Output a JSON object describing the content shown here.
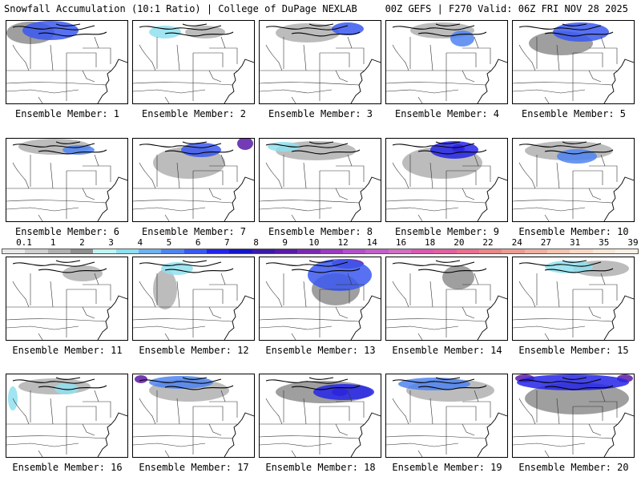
{
  "header": {
    "left": "Snowfall Accumulation (10:1 Ratio) | College of DuPage NEXLAB",
    "right": "00Z GEFS | F270 Valid: 06Z FRI NOV 28 2025"
  },
  "legend": {
    "ticks": [
      "0.1",
      "1",
      "2",
      "3",
      "4",
      "5",
      "6",
      "7",
      "8",
      "9",
      "10",
      "12",
      "14",
      "16",
      "18",
      "20",
      "22",
      "24",
      "27",
      "31",
      "35",
      "39"
    ],
    "colors": [
      "#e8e8e8",
      "#cfcfcf",
      "#b0b0b0",
      "#8e8e8e",
      "#bff3f3",
      "#8fe0ef",
      "#6fb0f0",
      "#4f84f0",
      "#3a58f0",
      "#2424e8",
      "#1616c8",
      "#3a1aa8",
      "#5a1aa8",
      "#7a2ab0",
      "#9a3ac0",
      "#b050c8",
      "#c060c8",
      "#d070c0",
      "#d85ab0",
      "#e060a0",
      "#e87090",
      "#e88888",
      "#ea9c90",
      "#eeb0a0",
      "#f2c4b0",
      "#f6d8c4",
      "#f8e6d6",
      "#faf0e6"
    ]
  },
  "panels": [
    {
      "label": "Ensemble Member: 1",
      "snow": [
        {
          "x": 55,
          "y": 12,
          "rx": 35,
          "ry": 12,
          "c": "#3a58f0"
        },
        {
          "x": 30,
          "y": 15,
          "rx": 30,
          "ry": 14,
          "c": "#8e8e8e"
        }
      ]
    },
    {
      "label": "Ensemble Member: 2",
      "snow": [
        {
          "x": 40,
          "y": 14,
          "rx": 20,
          "ry": 8,
          "c": "#8fe0ef"
        },
        {
          "x": 90,
          "y": 14,
          "rx": 25,
          "ry": 8,
          "c": "#b0b0b0"
        }
      ]
    },
    {
      "label": "Ensemble Member: 3",
      "snow": [
        {
          "x": 110,
          "y": 10,
          "rx": 20,
          "ry": 8,
          "c": "#3a58f0"
        },
        {
          "x": 60,
          "y": 15,
          "rx": 40,
          "ry": 12,
          "c": "#b0b0b0"
        }
      ]
    },
    {
      "label": "Ensemble Member: 4",
      "snow": [
        {
          "x": 95,
          "y": 22,
          "rx": 15,
          "ry": 10,
          "c": "#4f84f0"
        },
        {
          "x": 70,
          "y": 12,
          "rx": 40,
          "ry": 10,
          "c": "#b0b0b0"
        }
      ]
    },
    {
      "label": "Ensemble Member: 5",
      "snow": [
        {
          "x": 85,
          "y": 14,
          "rx": 35,
          "ry": 12,
          "c": "#3a58f0"
        },
        {
          "x": 60,
          "y": 28,
          "rx": 40,
          "ry": 15,
          "c": "#8e8e8e"
        }
      ]
    },
    {
      "label": "Ensemble Member: 6",
      "snow": [
        {
          "x": 90,
          "y": 14,
          "rx": 20,
          "ry": 6,
          "c": "#4f84f0"
        },
        {
          "x": 60,
          "y": 10,
          "rx": 45,
          "ry": 10,
          "c": "#b0b0b0"
        }
      ]
    },
    {
      "label": "Ensemble Member: 7",
      "snow": [
        {
          "x": 85,
          "y": 14,
          "rx": 25,
          "ry": 9,
          "c": "#3a58f0"
        },
        {
          "x": 140,
          "y": 6,
          "rx": 10,
          "ry": 8,
          "c": "#5a1aa8"
        },
        {
          "x": 70,
          "y": 30,
          "rx": 45,
          "ry": 20,
          "c": "#b0b0b0"
        }
      ]
    },
    {
      "label": "Ensemble Member: 8",
      "snow": [
        {
          "x": 30,
          "y": 10,
          "rx": 20,
          "ry": 6,
          "c": "#8fe0ef"
        },
        {
          "x": 70,
          "y": 15,
          "rx": 50,
          "ry": 12,
          "c": "#b0b0b0"
        }
      ]
    },
    {
      "label": "Ensemble Member: 9",
      "snow": [
        {
          "x": 85,
          "y": 14,
          "rx": 30,
          "ry": 11,
          "c": "#2424e8"
        },
        {
          "x": 90,
          "y": 12,
          "rx": 8,
          "ry": 5,
          "c": "#5a1aa8"
        },
        {
          "x": 70,
          "y": 30,
          "rx": 50,
          "ry": 20,
          "c": "#b0b0b0"
        }
      ]
    },
    {
      "label": "Ensemble Member: 10",
      "snow": [
        {
          "x": 80,
          "y": 22,
          "rx": 25,
          "ry": 9,
          "c": "#4f84f0"
        },
        {
          "x": 70,
          "y": 15,
          "rx": 55,
          "ry": 12,
          "c": "#b0b0b0"
        }
      ]
    },
    {
      "label": "Ensemble Member: 11",
      "snow": [
        {
          "x": 95,
          "y": 20,
          "rx": 25,
          "ry": 10,
          "c": "#b0b0b0"
        }
      ]
    },
    {
      "label": "Ensemble Member: 12",
      "snow": [
        {
          "x": 55,
          "y": 14,
          "rx": 20,
          "ry": 8,
          "c": "#8fe0ef"
        },
        {
          "x": 40,
          "y": 40,
          "rx": 15,
          "ry": 25,
          "c": "#b0b0b0"
        }
      ]
    },
    {
      "label": "Ensemble Member: 13",
      "snow": [
        {
          "x": 100,
          "y": 22,
          "rx": 40,
          "ry": 20,
          "c": "#3a58f0"
        },
        {
          "x": 110,
          "y": 8,
          "rx": 20,
          "ry": 6,
          "c": "#5a1aa8"
        },
        {
          "x": 95,
          "y": 40,
          "rx": 30,
          "ry": 20,
          "c": "#8e8e8e"
        }
      ]
    },
    {
      "label": "Ensemble Member: 14",
      "snow": [
        {
          "x": 90,
          "y": 25,
          "rx": 20,
          "ry": 15,
          "c": "#8e8e8e"
        }
      ]
    },
    {
      "label": "Ensemble Member: 15",
      "snow": [
        {
          "x": 70,
          "y": 12,
          "rx": 30,
          "ry": 8,
          "c": "#8fe0ef"
        },
        {
          "x": 110,
          "y": 14,
          "rx": 35,
          "ry": 10,
          "c": "#b0b0b0"
        }
      ]
    },
    {
      "label": "Ensemble Member: 16",
      "snow": [
        {
          "x": 75,
          "y": 18,
          "rx": 15,
          "ry": 7,
          "c": "#8fe0ef"
        },
        {
          "x": 8,
          "y": 30,
          "rx": 6,
          "ry": 15,
          "c": "#8fe0ef"
        },
        {
          "x": 60,
          "y": 15,
          "rx": 45,
          "ry": 10,
          "c": "#b0b0b0"
        }
      ]
    },
    {
      "label": "Ensemble Member: 17",
      "snow": [
        {
          "x": 60,
          "y": 10,
          "rx": 40,
          "ry": 8,
          "c": "#4f84f0"
        },
        {
          "x": 10,
          "y": 6,
          "rx": 8,
          "ry": 5,
          "c": "#5a1aa8"
        },
        {
          "x": 70,
          "y": 20,
          "rx": 50,
          "ry": 14,
          "c": "#b0b0b0"
        }
      ]
    },
    {
      "label": "Ensemble Member: 18",
      "snow": [
        {
          "x": 105,
          "y": 22,
          "rx": 38,
          "ry": 10,
          "c": "#2424e8"
        },
        {
          "x": 100,
          "y": 22,
          "rx": 10,
          "ry": 5,
          "c": "#5a1aa8"
        },
        {
          "x": 80,
          "y": 22,
          "rx": 60,
          "ry": 14,
          "c": "#8e8e8e"
        }
      ]
    },
    {
      "label": "Ensemble Member: 19",
      "snow": [
        {
          "x": 60,
          "y": 12,
          "rx": 45,
          "ry": 8,
          "c": "#4f84f0"
        },
        {
          "x": 80,
          "y": 20,
          "rx": 55,
          "ry": 14,
          "c": "#b0b0b0"
        }
      ]
    },
    {
      "label": "Ensemble Member: 20",
      "snow": [
        {
          "x": 75,
          "y": 10,
          "rx": 70,
          "ry": 10,
          "c": "#2424e8"
        },
        {
          "x": 15,
          "y": 5,
          "rx": 12,
          "ry": 5,
          "c": "#5a1aa8"
        },
        {
          "x": 140,
          "y": 5,
          "rx": 10,
          "ry": 5,
          "c": "#5a1aa8"
        },
        {
          "x": 80,
          "y": 30,
          "rx": 65,
          "ry": 20,
          "c": "#8e8e8e"
        }
      ]
    }
  ]
}
